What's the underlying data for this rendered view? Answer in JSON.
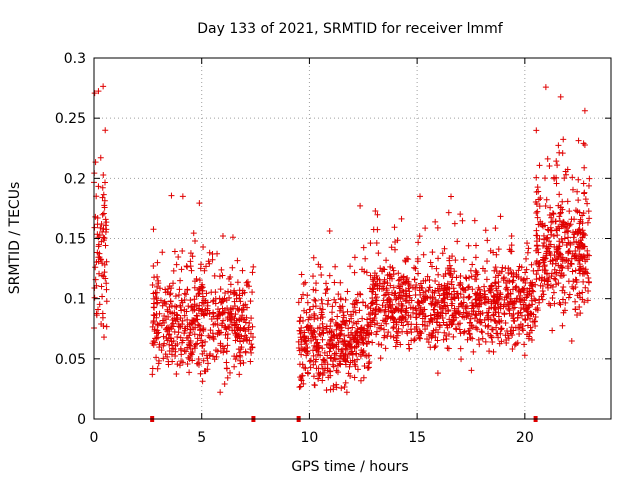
{
  "chart_data": {
    "type": "scatter",
    "title": "Day 133 of 2021, SRMTID for receiver lmmf",
    "xlabel": "GPS time / hours",
    "ylabel": "SRMTID / TECUs",
    "xlim": [
      0,
      24
    ],
    "ylim": [
      0,
      0.3
    ],
    "xticks": [
      0,
      5,
      10,
      15,
      20
    ],
    "xtick_labels": [
      "0",
      "5",
      "10",
      "15",
      "20"
    ],
    "yticks": [
      0,
      0.05,
      0.1,
      0.15,
      0.2,
      0.25,
      0.3
    ],
    "ytick_labels": [
      "0",
      "0.05",
      "0.1",
      "0.15",
      "0.2",
      "0.25",
      "0.3"
    ],
    "grid": true,
    "marker": "plus",
    "color": "#e00000",
    "baseline_markers_x": [
      2.7,
      7.4,
      9.5,
      20.5
    ],
    "clusters": [
      {
        "x_range": [
          0.0,
          0.6
        ],
        "y_mean": 0.14,
        "y_spread": 0.06,
        "count": 80
      },
      {
        "x_range": [
          2.7,
          7.4
        ],
        "y_mean": 0.08,
        "y_spread": 0.035,
        "count": 550
      },
      {
        "x_range": [
          9.5,
          12.8
        ],
        "y_mean": 0.065,
        "y_spread": 0.03,
        "count": 450
      },
      {
        "x_range": [
          12.8,
          20.5
        ],
        "y_mean": 0.095,
        "y_spread": 0.03,
        "count": 950
      },
      {
        "x_range": [
          20.5,
          23.0
        ],
        "y_mean": 0.14,
        "y_spread": 0.045,
        "count": 380
      }
    ]
  }
}
